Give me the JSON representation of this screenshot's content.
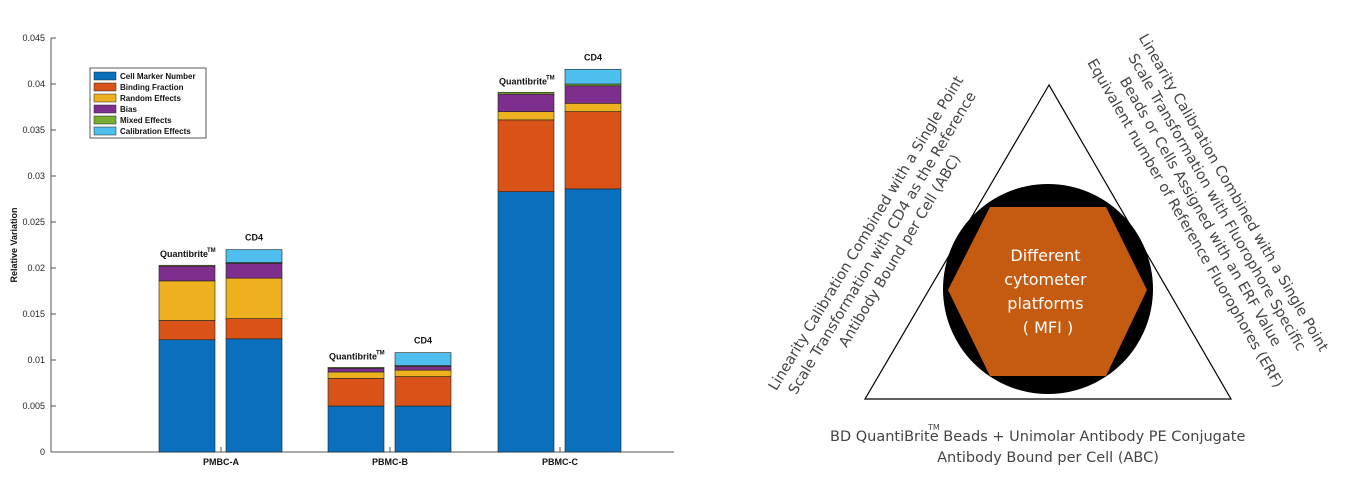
{
  "chart_data": {
    "type": "bar",
    "stacked": true,
    "ylabel": "Relative Variation",
    "xlabel": "",
    "ylim": [
      0,
      0.045
    ],
    "yticks": [
      "0",
      "0.005",
      "0.01",
      "0.015",
      "0.02",
      "0.025",
      "0.03",
      "0.035",
      "0.04",
      "0.045"
    ],
    "ytick_values": [
      0,
      0.005,
      0.01,
      0.015,
      0.02,
      0.025,
      0.03,
      0.035,
      0.04,
      0.045
    ],
    "categories": [
      "PMBC-A",
      "PBMC-B",
      "PBMC-C"
    ],
    "bar_labels": [
      "QuantibriteTM",
      "CD4"
    ],
    "legend_position": "top-left",
    "series": [
      {
        "name": "Cell Marker Number",
        "color": "#0a6fbd",
        "values": [
          [
            0.0122,
            0.0123
          ],
          [
            0.005,
            0.005
          ],
          [
            0.0283,
            0.0286
          ]
        ]
      },
      {
        "name": "Binding Fraction",
        "color": "#d95319",
        "values": [
          [
            0.0021,
            0.0022
          ],
          [
            0.003,
            0.0032
          ],
          [
            0.0078,
            0.0084
          ]
        ]
      },
      {
        "name": "Random Effects",
        "color": "#edb120",
        "values": [
          [
            0.0043,
            0.0044
          ],
          [
            0.0007,
            0.0007
          ],
          [
            0.0009,
            0.0009
          ]
        ]
      },
      {
        "name": "Bias",
        "color": "#7e2f8e",
        "values": [
          [
            0.0016,
            0.0016
          ],
          [
            0.0004,
            0.0004
          ],
          [
            0.0019,
            0.0019
          ]
        ]
      },
      {
        "name": "Mixed Effects",
        "color": "#77ac30",
        "values": [
          [
            0.0001,
            0.0001
          ],
          [
            0.0001,
            0.0001
          ],
          [
            0.0002,
            0.0002
          ]
        ]
      },
      {
        "name": "Calibration Effects",
        "color": "#4dbeee",
        "values": [
          [
            0.0,
            0.0014
          ],
          [
            0.0,
            0.0014
          ],
          [
            0.0,
            0.0016
          ]
        ]
      }
    ]
  },
  "diagram": {
    "hexagon_text": [
      "Different",
      "cytometer",
      "platforms",
      "( MFI )"
    ],
    "left_side_text": [
      "Linearity Calibration Combined with a Single Point",
      "Scale Transformation with CD4 as the Reference",
      "Antibody Bound per Cell (ABC)"
    ],
    "right_side_text": [
      "Linearity Calibration Combined with a Single Point",
      "Scale Transformation with Fluorophore Specific",
      "Beads or Cells Assigned with an ERF Value",
      "Equivalent number of Reference Fluorophores (ERF)"
    ],
    "bottom_text_line1_a": "BD QuantiBrite",
    "bottom_text_tm": "TM",
    "bottom_text_line1_b": " Beads + Unimolar Antibody PE Conjugate",
    "bottom_text_line2": "Antibody Bound per Cell (ABC)",
    "colors": {
      "hexagon": "#c55a11",
      "circle": "#000000",
      "triangle": "#000000"
    }
  }
}
